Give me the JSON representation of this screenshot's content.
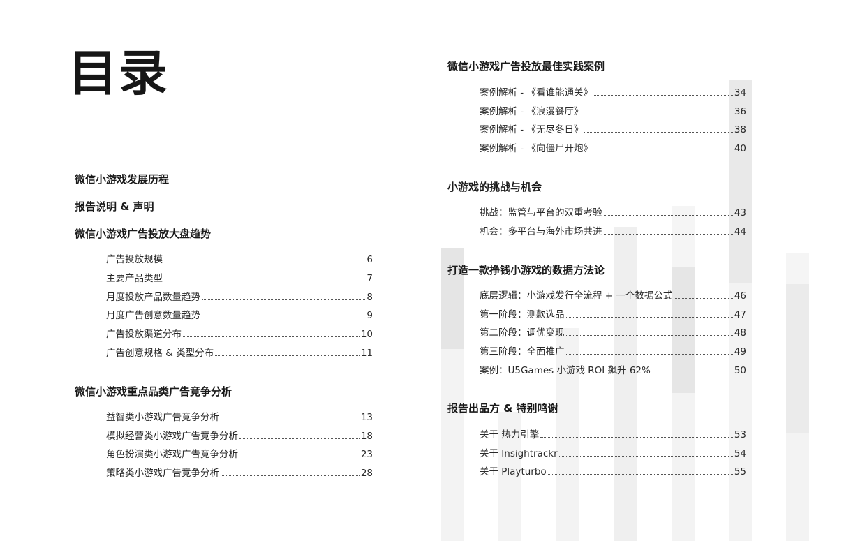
{
  "page": {
    "title": "目录"
  },
  "left_column": [
    {
      "heading": "微信小游戏发展历程",
      "items": []
    },
    {
      "heading": "报告说明 & 声明",
      "items": []
    },
    {
      "heading": "微信小游戏广告投放大盘趋势",
      "items": [
        {
          "title": "广告投放规模",
          "page": "6"
        },
        {
          "title": "主要产品类型",
          "page": "7"
        },
        {
          "title": "月度投放产品数量趋势",
          "page": "8"
        },
        {
          "title": "月度广告创意数量趋势",
          "page": "9"
        },
        {
          "title": "广告投放渠道分布",
          "page": "10"
        },
        {
          "title": "广告创意规格 & 类型分布",
          "page": "11"
        }
      ]
    },
    {
      "heading": "微信小游戏重点品类广告竞争分析",
      "items": [
        {
          "title": "益智类小游戏广告竞争分析",
          "page": "13"
        },
        {
          "title": "模拟经营类小游戏广告竞争分析",
          "page": "18"
        },
        {
          "title": "角色扮演类小游戏广告竞争分析",
          "page": "23"
        },
        {
          "title": "策略类小游戏广告竞争分析",
          "page": "28"
        }
      ]
    }
  ],
  "right_column": [
    {
      "heading": "微信小游戏广告投放最佳实践案例",
      "items": [
        {
          "title": "案例解析 - 《看谁能通关》",
          "page": "34"
        },
        {
          "title": "案例解析 - 《浪漫餐厅》",
          "page": "36"
        },
        {
          "title": "案例解析 - 《无尽冬日》",
          "page": "38"
        },
        {
          "title": "案例解析 - 《向僵尸开炮》",
          "page": "40"
        }
      ]
    },
    {
      "heading": "小游戏的挑战与机会",
      "items": [
        {
          "title": "挑战：监管与平台的双重考验",
          "page": "43"
        },
        {
          "title": "机会：多平台与海外市场共进",
          "page": "44"
        }
      ]
    },
    {
      "heading": "打造一款挣钱小游戏的数据方法论",
      "items": [
        {
          "title": "底层逻辑：小游戏发行全流程 + 一个数据公式",
          "page": "46"
        },
        {
          "title": "第一阶段：测款选品",
          "page": "47"
        },
        {
          "title": "第二阶段：调优变现",
          "page": "48"
        },
        {
          "title": "第三阶段：全面推广",
          "page": "49"
        },
        {
          "title": "案例：U5Games 小游戏 ROI 飙升 62%",
          "page": "50"
        }
      ]
    },
    {
      "heading": "报告出品方 & 特别鸣谢",
      "items": [
        {
          "title": "关于 热力引擎",
          "page": "53"
        },
        {
          "title": "关于 Insightrackr",
          "page": "54"
        },
        {
          "title": "关于 Playturbo",
          "page": "55"
        }
      ]
    }
  ],
  "decor_colors": {
    "light": "#f5f5f5",
    "mid": "#ededed",
    "dark": "#e2e2e2"
  }
}
